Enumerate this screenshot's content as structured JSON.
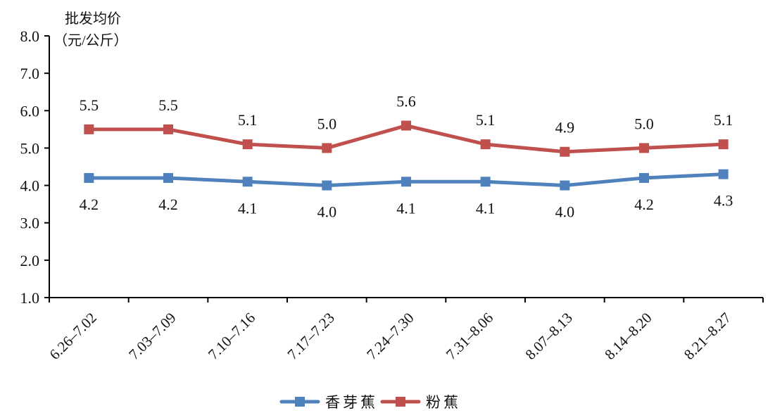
{
  "chart_data": {
    "type": "line",
    "ylabel_line1": "批发均价",
    "ylabel_line2": "（元/公斤）",
    "ylim": [
      1.0,
      8.0
    ],
    "yticks": [
      "1.0",
      "2.0",
      "3.0",
      "4.0",
      "5.0",
      "6.0",
      "7.0",
      "8.0"
    ],
    "categories": [
      "6.26–7.02",
      "7.03–7.09",
      "7.10–7.16",
      "7.17–7.23",
      "7.24–7.30",
      "7.31–8.06",
      "8.07–8.13",
      "8.14–8.20",
      "8.21–8.27"
    ],
    "series": [
      {
        "name": "香芽蕉",
        "color": "#4f81bd",
        "values": [
          4.2,
          4.2,
          4.1,
          4.0,
          4.1,
          4.1,
          4.0,
          4.2,
          4.3
        ],
        "label_position": "below"
      },
      {
        "name": "粉蕉",
        "color": "#c0504d",
        "values": [
          5.5,
          5.5,
          5.1,
          5.0,
          5.6,
          5.1,
          4.9,
          5.0,
          5.1
        ],
        "label_position": "above"
      }
    ],
    "grid": false,
    "legend": "bottom-center"
  }
}
